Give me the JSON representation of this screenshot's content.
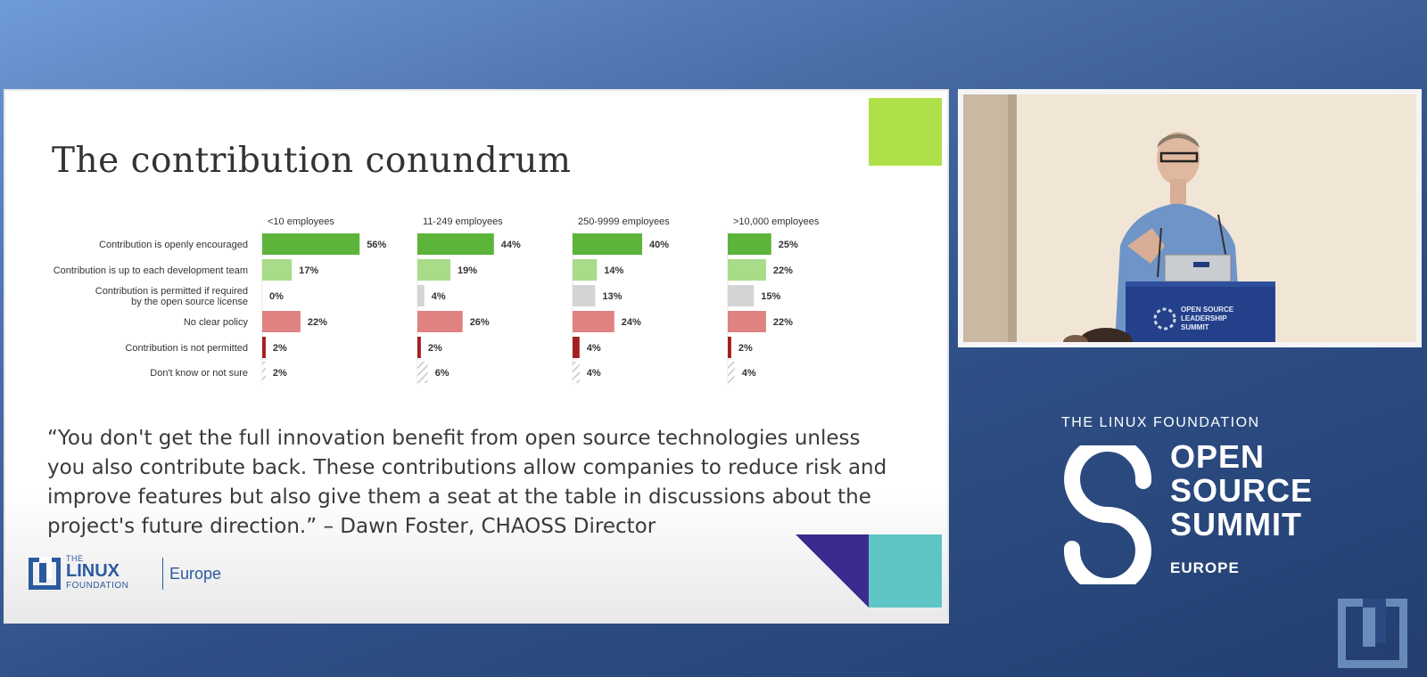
{
  "slide": {
    "title": "The contribution conundrum",
    "quote": "“You don't get the full innovation benefit from open source technologies unless you also contribute back. These contributions allow companies to reduce risk and improve features but also give them a seat at the table in discussions about the project's future direction.” – Dawn Foster, CHAOSS Director",
    "footer_logo": {
      "the": "THE",
      "linux": "LINUX",
      "foundation": "FOUNDATION",
      "region": "Europe"
    }
  },
  "chart_data": {
    "type": "bar",
    "orientation": "horizontal",
    "panels": [
      "<10 employees",
      "11-249 employees",
      "250-9999 employees",
      ">10,000 employees"
    ],
    "categories": [
      [
        "Contribution is openly encouraged"
      ],
      [
        "Contribution is up to each development team"
      ],
      [
        "Contribution is permitted if required",
        "by the open source license"
      ],
      [
        "No clear policy"
      ],
      [
        "Contribution is not permitted"
      ],
      [
        "Don't know or not sure"
      ]
    ],
    "category_colors": [
      "#5db43b",
      "#a8dc88",
      "#d4d4d4",
      "#e08282",
      "#a31f1f",
      "#c8c8c8"
    ],
    "values": [
      [
        56,
        17,
        0,
        22,
        2,
        2
      ],
      [
        44,
        19,
        4,
        26,
        2,
        6
      ],
      [
        40,
        14,
        13,
        24,
        4,
        4
      ],
      [
        25,
        22,
        15,
        22,
        2,
        4
      ]
    ],
    "value_format": "%",
    "xlim": [
      0,
      60
    ]
  },
  "video_panel": {
    "lectern_text": [
      "OPEN SOURCE",
      "LEADERSHIP",
      "SUMMIT"
    ]
  },
  "event_branding": {
    "top": "THE LINUX FOUNDATION",
    "lines": [
      "OPEN",
      "SOURCE",
      "SUMMIT"
    ],
    "region": "EUROPE"
  },
  "colors": {
    "accent_green": "#afe04a",
    "accent_purple": "#3d2a8f",
    "accent_teal": "#5ec4c4",
    "lf_blue": "#2a5a9f"
  }
}
